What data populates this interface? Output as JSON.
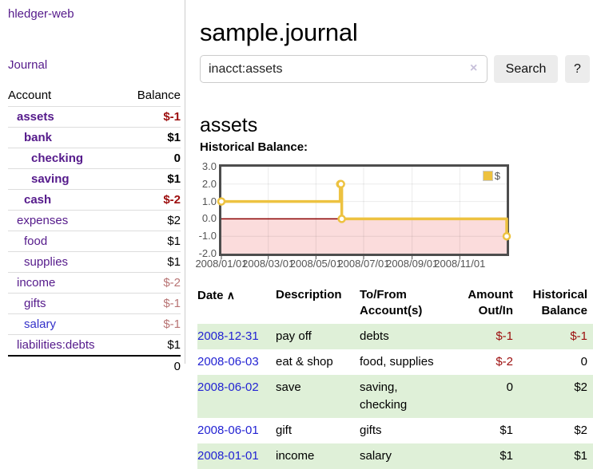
{
  "colors": {
    "accent_purple": "#551a8b",
    "link_blue": "#2323d3",
    "negative_strong": "#9c0d0d",
    "negative_soft": "#b87474",
    "row_stripe_green": "#dff0d8",
    "button_gray": "#ececec"
  },
  "sidebar": {
    "app_title": "hledger-web",
    "nav_journal": "Journal",
    "accounts": {
      "col_account": "Account",
      "col_balance": "Balance",
      "rows": [
        {
          "name": "assets",
          "balance": "$-1"
        },
        {
          "name": "bank",
          "balance": "$1"
        },
        {
          "name": "checking",
          "balance": "0"
        },
        {
          "name": "saving",
          "balance": "$1"
        },
        {
          "name": "cash",
          "balance": "$-2"
        },
        {
          "name": "expenses",
          "balance": "$2"
        },
        {
          "name": "food",
          "balance": "$1"
        },
        {
          "name": "supplies",
          "balance": "$1"
        },
        {
          "name": "income",
          "balance": "$-2"
        },
        {
          "name": "gifts",
          "balance": "$-1"
        },
        {
          "name": "salary",
          "balance": "$-1"
        },
        {
          "name": "liabilities:debts",
          "balance": "$1"
        }
      ],
      "total": "0"
    }
  },
  "main": {
    "page_title": "sample.journal",
    "search": {
      "value": "inacct:assets",
      "clear_icon": "×",
      "search_button": "Search",
      "help_button": "?"
    },
    "account_heading": "assets",
    "section_label": "Historical Balance:"
  },
  "chart_data": {
    "type": "line",
    "step": true,
    "title": "Historical Balance of assets",
    "x_range": [
      "2008-01-01",
      "2008-12-31"
    ],
    "ylim": [
      -2,
      3
    ],
    "yticks": [
      "3.0",
      "2.0",
      "1.0",
      "0.0",
      "-1.0",
      "-2.0"
    ],
    "xticks": [
      "2008/01/01",
      "2008/03/01",
      "2008/05/01",
      "2008/07/01",
      "2008/09/01",
      "2008/11/01"
    ],
    "grid": true,
    "legend_position": "top-right",
    "series": [
      {
        "name": "$",
        "color": "#edc240",
        "points": [
          [
            "2008-01-01",
            1
          ],
          [
            "2008-06-01",
            2
          ],
          [
            "2008-06-02",
            2
          ],
          [
            "2008-06-03",
            0
          ],
          [
            "2008-12-31",
            -1
          ]
        ]
      }
    ],
    "colors": {
      "negative_region": "#fbdcdc",
      "zero_line": "#8b0000",
      "border": "#4d4d4d",
      "grid": "rgba(0,0,0,0.08)",
      "axis_text": "#545454"
    }
  },
  "transactions": {
    "headers": [
      "Date",
      "Description",
      "To/From Account(s)",
      "Amount Out/In",
      "Historical Balance"
    ],
    "date_sort_icon": "∧",
    "rows": [
      {
        "date": "2008-12-31",
        "description": "pay off",
        "accounts": "debts",
        "amount": "$-1",
        "balance": "$-1"
      },
      {
        "date": "2008-06-03",
        "description": "eat & shop",
        "accounts": "food, supplies",
        "amount": "$-2",
        "balance": "0"
      },
      {
        "date": "2008-06-02",
        "description": "save",
        "accounts": "saving,\nchecking",
        "amount": "0",
        "balance": "$2"
      },
      {
        "date": "2008-06-01",
        "description": "gift",
        "accounts": "gifts",
        "amount": "$1",
        "balance": "$2"
      },
      {
        "date": "2008-01-01",
        "description": "income",
        "accounts": "salary",
        "amount": "$1",
        "balance": "$1"
      }
    ]
  }
}
